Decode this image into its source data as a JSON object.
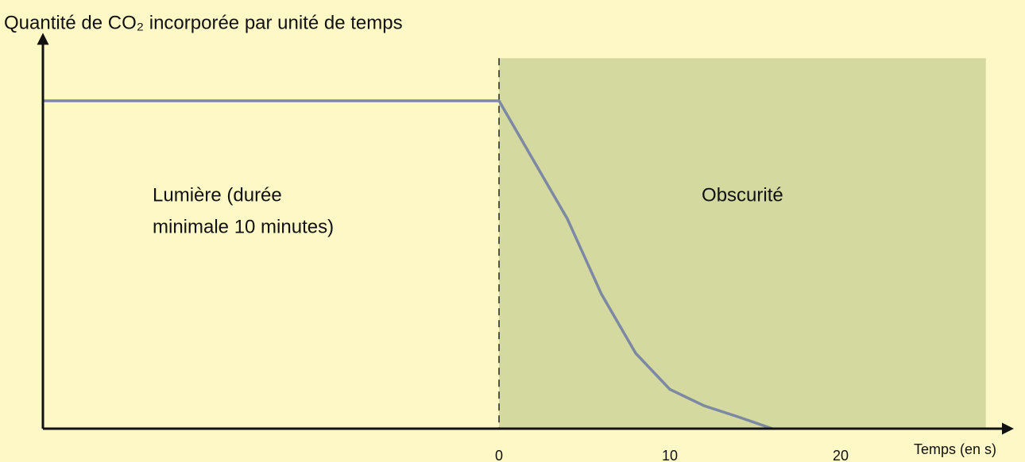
{
  "chart_data": {
    "type": "line",
    "title": "Quantité de CO₂ incorporée par unité de temps",
    "xlabel": "Temps (en s)",
    "xlim": [
      -26.7,
      30
    ],
    "ylim": [
      0,
      120
    ],
    "xticks": [
      0,
      10,
      20
    ],
    "regions": [
      {
        "lines": [
          "Lumière (durée",
          "minimale 10 minutes)"
        ],
        "from": -26.7,
        "to": 0,
        "top": 113,
        "color": "#fdf8c6"
      },
      {
        "lines": [
          "Obscurité"
        ],
        "from": 0,
        "to": 28.5,
        "top": 113,
        "color": "#d3d99f"
      }
    ],
    "series": [
      {
        "color": "#7d88a4",
        "x": [
          -26.7,
          0,
          2,
          4,
          6,
          8,
          10,
          12,
          14,
          16
        ],
        "values": [
          100,
          100,
          82,
          64,
          41,
          23,
          12,
          7,
          3.6,
          0
        ]
      }
    ]
  }
}
